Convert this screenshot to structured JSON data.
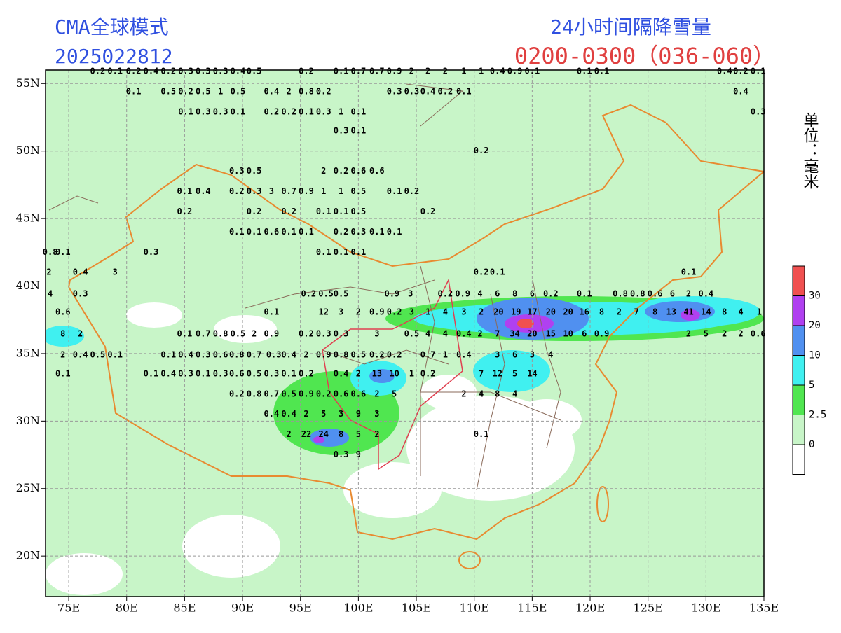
{
  "chart_data": {
    "type": "station-map",
    "title_left": "CMA全球模式",
    "subtitle_left": "2025022812",
    "title_right": "24小时间隔降雪量",
    "subtitle_right": "0200-0300（036-060）",
    "unit": "单位：毫米",
    "xlim": [
      73,
      135
    ],
    "ylim": [
      17,
      56
    ],
    "xticks": [
      {
        "value": 75,
        "label": "75E"
      },
      {
        "value": 80,
        "label": "80E"
      },
      {
        "value": 85,
        "label": "85E"
      },
      {
        "value": 90,
        "label": "90E"
      },
      {
        "value": 95,
        "label": "95E"
      },
      {
        "value": 100,
        "label": "100E"
      },
      {
        "value": 105,
        "label": "105E"
      },
      {
        "value": 110,
        "label": "110E"
      },
      {
        "value": 115,
        "label": "115E"
      },
      {
        "value": 120,
        "label": "120E"
      },
      {
        "value": 125,
        "label": "125E"
      },
      {
        "value": 130,
        "label": "130E"
      },
      {
        "value": 135,
        "label": "135E"
      }
    ],
    "yticks": [
      {
        "value": 20,
        "label": "20N"
      },
      {
        "value": 25,
        "label": "25N"
      },
      {
        "value": 30,
        "label": "30N"
      },
      {
        "value": 35,
        "label": "35N"
      },
      {
        "value": 40,
        "label": "40N"
      },
      {
        "value": 45,
        "label": "45N"
      },
      {
        "value": 50,
        "label": "50N"
      },
      {
        "value": 55,
        "label": "55N"
      }
    ],
    "grid": true,
    "legend": {
      "levels": [
        0,
        2.5,
        5,
        10,
        20,
        30
      ],
      "colors": [
        "#ffffff",
        "#c8f5c8",
        "#50e650",
        "#40f0f0",
        "#5090f0",
        "#b040f0",
        "#f05050"
      ]
    },
    "stations": [
      [
        97.0,
        38.05,
        12
      ],
      [
        98.5,
        38.05,
        3
      ],
      [
        100.0,
        38.05,
        2
      ],
      [
        101.6,
        38.05,
        0.9
      ],
      [
        103.1,
        38.05,
        0.2
      ],
      [
        104.6,
        38.05,
        3
      ],
      [
        106.0,
        38.05,
        1
      ],
      [
        107.5,
        38.05,
        4
      ],
      [
        109.1,
        38.05,
        3
      ],
      [
        110.6,
        38.05,
        2
      ],
      [
        112.1,
        38.05,
        20
      ],
      [
        113.6,
        38.05,
        19
      ],
      [
        115.0,
        38.05,
        17
      ],
      [
        116.6,
        38.05,
        20
      ],
      [
        118.1,
        38.05,
        20
      ],
      [
        119.5,
        38.05,
        16
      ],
      [
        121.0,
        38.05,
        8
      ],
      [
        122.5,
        38.05,
        2
      ],
      [
        124.0,
        38.05,
        7
      ],
      [
        125.6,
        38.05,
        8
      ],
      [
        127.0,
        38.05,
        13
      ],
      [
        128.5,
        38.05,
        41
      ],
      [
        130.0,
        38.05,
        14
      ],
      [
        131.6,
        38.05,
        8
      ],
      [
        133.0,
        38.05,
        4
      ],
      [
        134.6,
        38.05,
        1
      ],
      [
        74.5,
        38.05,
        0.6
      ],
      [
        92.5,
        38.05,
        0.1
      ],
      [
        95.7,
        39.4,
        0.2
      ],
      [
        97.2,
        39.4,
        0.5
      ],
      [
        98.5,
        39.4,
        0.5
      ],
      [
        102.9,
        39.4,
        0.9
      ],
      [
        104.5,
        39.4,
        3
      ],
      [
        107.5,
        39.4,
        0.2
      ],
      [
        109.0,
        39.4,
        0.9
      ],
      [
        110.5,
        39.4,
        4
      ],
      [
        112.0,
        39.4,
        6
      ],
      [
        113.5,
        39.4,
        8
      ],
      [
        115.0,
        39.4,
        6
      ],
      [
        116.6,
        39.4,
        0.2
      ],
      [
        119.5,
        39.4,
        0.1
      ],
      [
        122.6,
        39.4,
        0.8
      ],
      [
        124.1,
        39.4,
        0.8
      ],
      [
        125.6,
        39.4,
        0.6
      ],
      [
        127.1,
        39.4,
        6
      ],
      [
        128.5,
        39.4,
        2
      ],
      [
        130.0,
        39.4,
        0.4
      ],
      [
        73.4,
        39.4,
        4
      ],
      [
        76.0,
        39.4,
        0.3
      ],
      [
        85.0,
        36.45,
        0.1
      ],
      [
        86.6,
        36.45,
        0.7
      ],
      [
        88.1,
        36.45,
        0.8
      ],
      [
        89.6,
        36.45,
        0.5
      ],
      [
        91.0,
        36.45,
        2
      ],
      [
        92.5,
        36.45,
        0.9
      ],
      [
        95.5,
        36.45,
        0.2
      ],
      [
        97.0,
        36.45,
        0.3
      ],
      [
        98.5,
        36.45,
        0.3
      ],
      [
        101.6,
        36.45,
        3
      ],
      [
        104.6,
        36.45,
        0.5
      ],
      [
        106.0,
        36.45,
        4
      ],
      [
        107.5,
        36.45,
        4
      ],
      [
        109.1,
        36.45,
        0.4
      ],
      [
        110.5,
        36.45,
        2
      ],
      [
        112.0,
        36.45,
        7
      ],
      [
        113.5,
        36.45,
        34
      ],
      [
        115.0,
        36.45,
        20
      ],
      [
        116.6,
        36.45,
        15
      ],
      [
        118.1,
        36.45,
        10
      ],
      [
        119.5,
        36.45,
        6
      ],
      [
        121.0,
        36.45,
        0.9
      ],
      [
        128.5,
        36.45,
        2
      ],
      [
        130.0,
        36.45,
        5
      ],
      [
        131.6,
        36.45,
        2
      ],
      [
        133.0,
        36.45,
        2
      ],
      [
        134.5,
        36.45,
        0.6
      ],
      [
        74.5,
        36.45,
        8
      ],
      [
        76.0,
        36.45,
        2
      ],
      [
        74.5,
        34.9,
        2
      ],
      [
        76.0,
        34.9,
        0.4
      ],
      [
        77.5,
        34.9,
        0.5
      ],
      [
        79.0,
        34.9,
        0.1
      ],
      [
        83.6,
        34.9,
        0.1
      ],
      [
        85.1,
        34.9,
        0.4
      ],
      [
        86.6,
        34.9,
        0.3
      ],
      [
        88.1,
        34.9,
        0.6
      ],
      [
        89.5,
        34.9,
        0.8
      ],
      [
        91.0,
        34.9,
        0.7
      ],
      [
        92.7,
        34.9,
        0.3
      ],
      [
        94.0,
        34.9,
        0.4
      ],
      [
        95.5,
        34.9,
        2
      ],
      [
        97.0,
        34.9,
        0.9
      ],
      [
        98.5,
        34.9,
        0.8
      ],
      [
        100.0,
        34.9,
        0.5
      ],
      [
        101.6,
        34.9,
        0.2
      ],
      [
        103.1,
        34.9,
        0.2
      ],
      [
        106.0,
        34.9,
        0.7
      ],
      [
        107.5,
        34.9,
        1
      ],
      [
        109.1,
        34.9,
        0.4
      ],
      [
        112.0,
        34.9,
        3
      ],
      [
        113.5,
        34.9,
        6
      ],
      [
        115.0,
        34.9,
        3
      ],
      [
        116.6,
        34.9,
        4
      ],
      [
        74.5,
        33.5,
        0.1
      ],
      [
        82.1,
        33.5,
        0.1
      ],
      [
        83.6,
        33.5,
        0.4
      ],
      [
        85.1,
        33.5,
        0.3
      ],
      [
        86.6,
        33.5,
        0.1
      ],
      [
        88.1,
        33.5,
        0.3
      ],
      [
        89.5,
        33.5,
        0.6
      ],
      [
        91.0,
        33.5,
        0.5
      ],
      [
        92.5,
        33.5,
        0.3
      ],
      [
        94.0,
        33.5,
        0.1
      ],
      [
        95.5,
        33.5,
        0.2
      ],
      [
        98.5,
        33.5,
        0.4
      ],
      [
        100.0,
        33.5,
        2
      ],
      [
        101.6,
        33.5,
        13
      ],
      [
        103.1,
        33.5,
        10
      ],
      [
        104.6,
        33.5,
        1
      ],
      [
        106.0,
        33.5,
        0.2
      ],
      [
        110.6,
        33.5,
        7
      ],
      [
        112.0,
        33.5,
        12
      ],
      [
        113.5,
        33.5,
        5
      ],
      [
        115.0,
        33.5,
        14
      ],
      [
        89.5,
        32.0,
        0.2
      ],
      [
        91.0,
        32.0,
        0.8
      ],
      [
        92.5,
        32.0,
        0.7
      ],
      [
        94.0,
        32.0,
        0.5
      ],
      [
        95.5,
        32.0,
        0.9
      ],
      [
        97.0,
        32.0,
        0.2
      ],
      [
        98.5,
        32.0,
        0.6
      ],
      [
        100.0,
        32.0,
        0.6
      ],
      [
        101.6,
        32.0,
        2
      ],
      [
        103.1,
        32.0,
        5
      ],
      [
        109.1,
        32.0,
        2
      ],
      [
        110.6,
        32.0,
        4
      ],
      [
        112.0,
        32.0,
        8
      ],
      [
        113.5,
        32.0,
        4
      ],
      [
        92.5,
        30.5,
        0.4
      ],
      [
        94.0,
        30.5,
        0.4
      ],
      [
        95.5,
        30.5,
        2
      ],
      [
        97.0,
        30.5,
        5
      ],
      [
        98.5,
        30.5,
        3
      ],
      [
        100.0,
        30.5,
        9
      ],
      [
        101.6,
        30.5,
        3
      ],
      [
        94.0,
        29.0,
        2
      ],
      [
        95.5,
        29.0,
        22
      ],
      [
        97.0,
        29.0,
        24
      ],
      [
        98.5,
        29.0,
        8
      ],
      [
        100.0,
        29.0,
        5
      ],
      [
        101.6,
        29.0,
        2
      ],
      [
        110.6,
        29.0,
        0.1
      ],
      [
        98.5,
        27.5,
        0.3
      ],
      [
        100.0,
        27.5,
        9
      ],
      [
        77.5,
        55.9,
        0.2
      ],
      [
        79.0,
        55.9,
        0.1
      ],
      [
        80.6,
        55.9,
        0.2
      ],
      [
        82.1,
        55.9,
        0.4
      ],
      [
        83.6,
        55.9,
        0.2
      ],
      [
        85.1,
        55.9,
        0.3
      ],
      [
        86.6,
        55.9,
        0.3
      ],
      [
        88.1,
        55.9,
        0.3
      ],
      [
        89.6,
        55.9,
        0.4
      ],
      [
        91.0,
        55.9,
        0.5
      ],
      [
        95.5,
        55.9,
        0.2
      ],
      [
        98.5,
        55.9,
        0.1
      ],
      [
        100.0,
        55.9,
        0.7
      ],
      [
        101.6,
        55.9,
        0.7
      ],
      [
        103.1,
        55.9,
        0.9
      ],
      [
        104.6,
        55.9,
        2
      ],
      [
        106.0,
        55.9,
        2
      ],
      [
        107.5,
        55.9,
        2
      ],
      [
        109.1,
        55.9,
        1
      ],
      [
        110.6,
        55.9,
        1
      ],
      [
        112.0,
        55.9,
        0.4
      ],
      [
        113.5,
        55.9,
        0.9
      ],
      [
        115.0,
        55.9,
        0.1
      ],
      [
        119.5,
        55.9,
        0.1
      ],
      [
        121.0,
        55.9,
        0.1
      ],
      [
        131.6,
        55.9,
        0.4
      ],
      [
        133.0,
        55.9,
        0.2
      ],
      [
        134.5,
        55.9,
        0.1
      ],
      [
        80.6,
        54.4,
        0.1
      ],
      [
        83.6,
        54.4,
        0.5
      ],
      [
        85.1,
        54.4,
        0.2
      ],
      [
        86.6,
        54.4,
        0.5
      ],
      [
        88.1,
        54.4,
        1
      ],
      [
        89.6,
        54.4,
        0.5
      ],
      [
        92.5,
        54.4,
        0.4
      ],
      [
        94.0,
        54.4,
        2
      ],
      [
        95.5,
        54.4,
        0.8
      ],
      [
        97.0,
        54.4,
        0.2
      ],
      [
        103.1,
        54.4,
        0.3
      ],
      [
        104.6,
        54.4,
        0.3
      ],
      [
        106.0,
        54.4,
        0.4
      ],
      [
        107.5,
        54.4,
        0.2
      ],
      [
        109.1,
        54.4,
        0.1
      ],
      [
        133.0,
        54.4,
        0.4
      ],
      [
        85.1,
        52.9,
        0.1
      ],
      [
        86.6,
        52.9,
        0.3
      ],
      [
        88.1,
        52.9,
        0.3
      ],
      [
        89.6,
        52.9,
        0.1
      ],
      [
        92.5,
        52.9,
        0.2
      ],
      [
        94.0,
        52.9,
        0.2
      ],
      [
        95.5,
        52.9,
        0.1
      ],
      [
        97.0,
        52.9,
        0.3
      ],
      [
        98.5,
        52.9,
        1
      ],
      [
        100.0,
        52.9,
        0.1
      ],
      [
        134.5,
        52.9,
        0.3
      ],
      [
        98.5,
        51.5,
        0.3
      ],
      [
        100.0,
        51.5,
        0.1
      ],
      [
        110.6,
        50.0,
        0.2
      ],
      [
        89.5,
        48.5,
        0.3
      ],
      [
        91.0,
        48.5,
        0.5
      ],
      [
        97.0,
        48.5,
        2
      ],
      [
        98.5,
        48.5,
        0.2
      ],
      [
        100.0,
        48.5,
        0.6
      ],
      [
        101.6,
        48.5,
        0.6
      ],
      [
        85.0,
        47.0,
        0.1
      ],
      [
        86.6,
        47.0,
        0.4
      ],
      [
        89.5,
        47.0,
        0.2
      ],
      [
        91.0,
        47.0,
        0.3
      ],
      [
        92.5,
        47.0,
        3
      ],
      [
        94.0,
        47.0,
        0.7
      ],
      [
        95.5,
        47.0,
        0.9
      ],
      [
        97.0,
        47.0,
        1
      ],
      [
        98.5,
        47.0,
        1
      ],
      [
        100.0,
        47.0,
        0.5
      ],
      [
        103.1,
        47.0,
        0.1
      ],
      [
        104.6,
        47.0,
        0.2
      ],
      [
        85.0,
        45.5,
        0.2
      ],
      [
        91.0,
        45.5,
        0.2
      ],
      [
        94.0,
        45.5,
        0.2
      ],
      [
        97.0,
        45.5,
        0.1
      ],
      [
        98.5,
        45.5,
        0.1
      ],
      [
        100.0,
        45.5,
        0.5
      ],
      [
        106.0,
        45.5,
        0.2
      ],
      [
        89.5,
        44.0,
        0.1
      ],
      [
        91.0,
        44.0,
        0.1
      ],
      [
        92.5,
        44.0,
        0.6
      ],
      [
        94.0,
        44.0,
        0.1
      ],
      [
        95.5,
        44.0,
        0.1
      ],
      [
        98.5,
        44.0,
        0.2
      ],
      [
        100.0,
        44.0,
        0.3
      ],
      [
        101.6,
        44.0,
        0.1
      ],
      [
        103.1,
        44.0,
        0.1
      ],
      [
        73.4,
        42.5,
        0.8
      ],
      [
        74.5,
        42.5,
        0.1
      ],
      [
        82.1,
        42.5,
        0.3
      ],
      [
        97.0,
        42.5,
        0.1
      ],
      [
        98.5,
        42.5,
        0.1
      ],
      [
        100.0,
        42.5,
        0.1
      ],
      [
        73.3,
        41.0,
        2
      ],
      [
        76.0,
        41.0,
        0.4
      ],
      [
        79.0,
        41.0,
        3
      ],
      [
        110.6,
        41.0,
        0.2
      ],
      [
        112.0,
        41.0,
        0.1
      ],
      [
        128.5,
        41.0,
        0.1
      ]
    ]
  }
}
